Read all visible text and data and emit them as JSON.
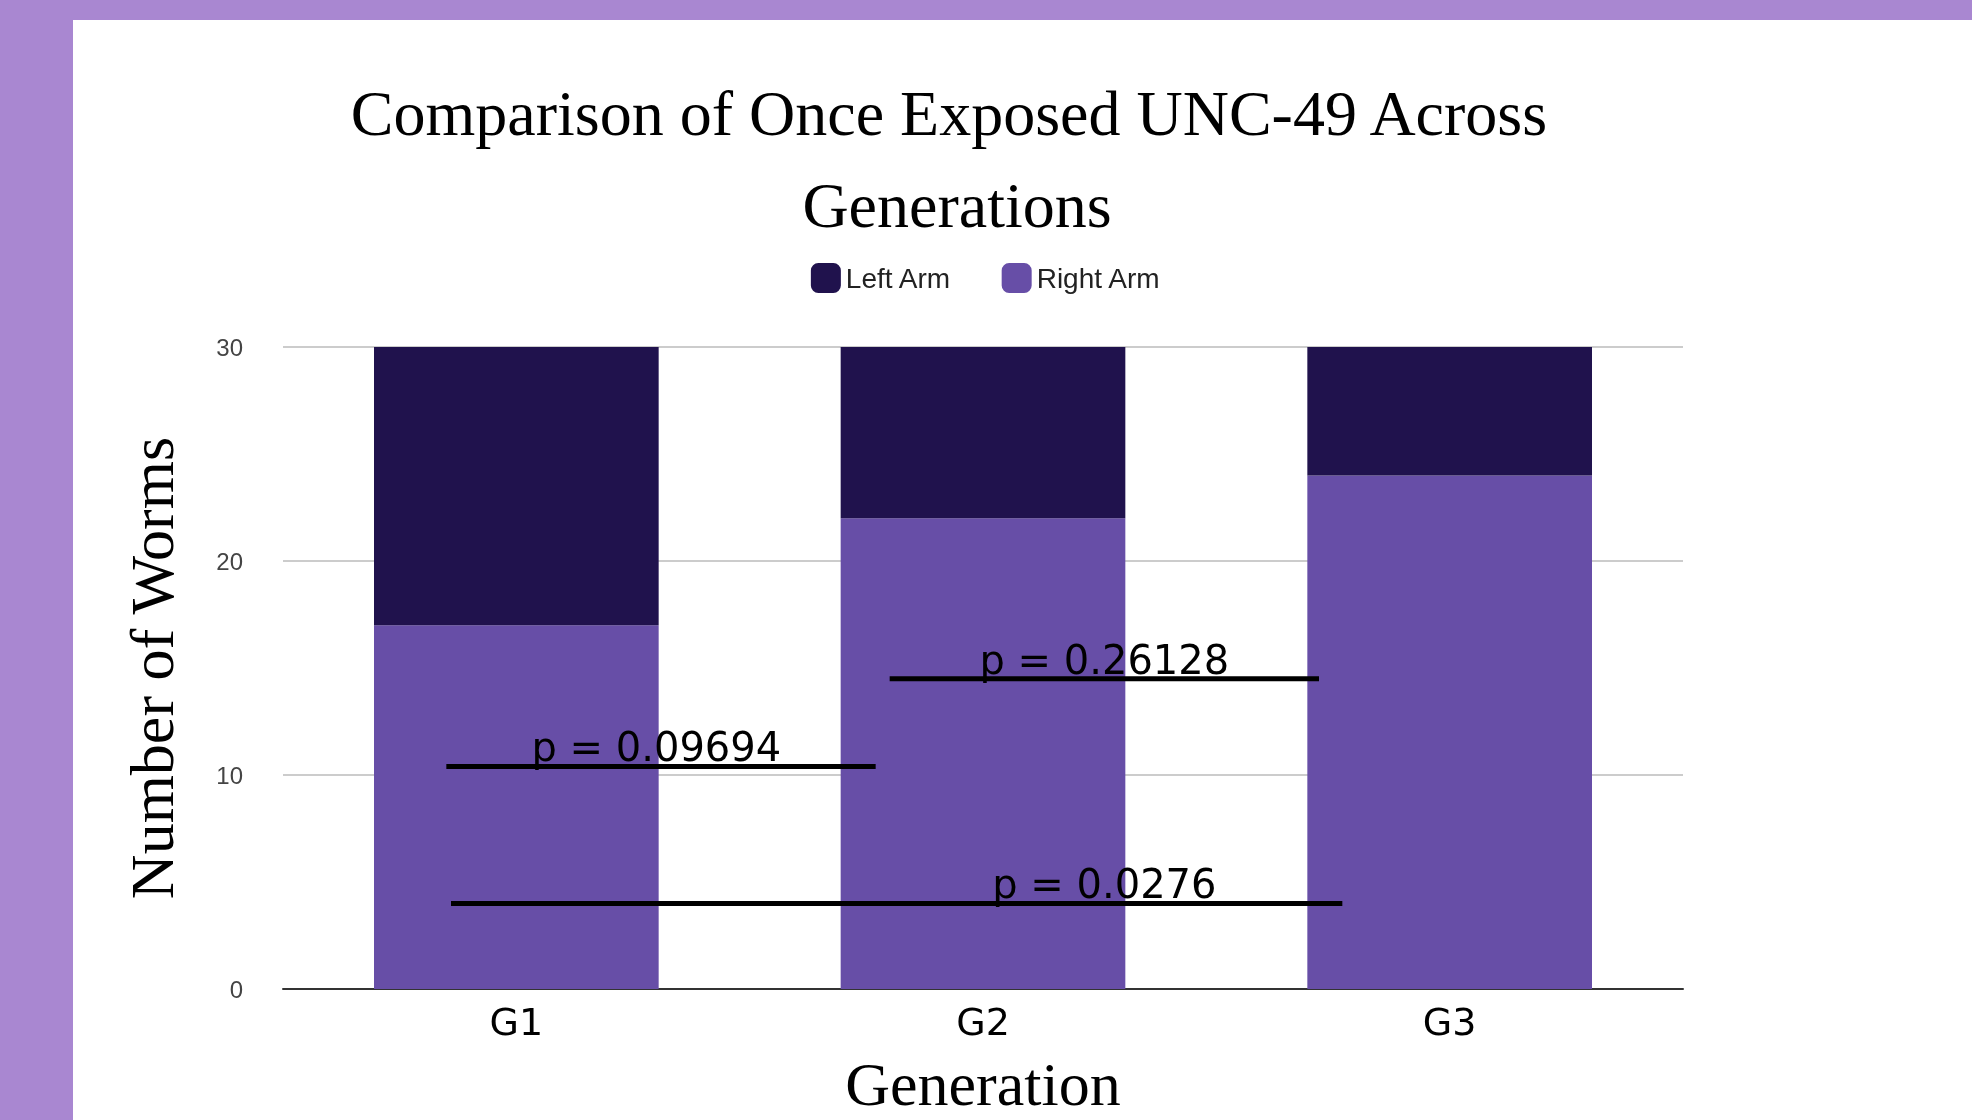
{
  "chart_data": {
    "type": "bar",
    "title": "Comparison of Once Exposed UNC-49 Across Generations",
    "xlabel": "Generation",
    "ylabel": "Number of Worms",
    "categories": [
      "G1",
      "G2",
      "G3"
    ],
    "stacked": true,
    "series": [
      {
        "name": "Right Arm",
        "color": "#674ea7",
        "values": [
          17,
          22,
          24
        ]
      },
      {
        "name": "Left Arm",
        "color": "#20124d",
        "values": [
          13,
          8,
          6
        ]
      }
    ],
    "ylim": [
      0,
      30
    ],
    "yticks": [
      0,
      10,
      20,
      30
    ],
    "grid": "y",
    "legend": "top",
    "annotations": [
      "p = 0.09694",
      "p = 0.26128",
      "p = 0.0276"
    ]
  }
}
